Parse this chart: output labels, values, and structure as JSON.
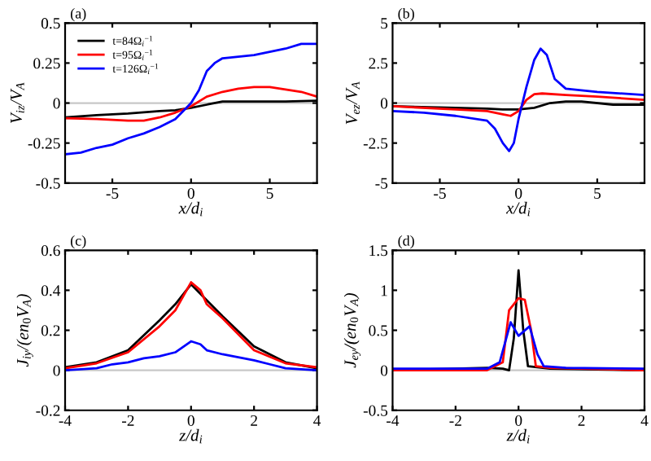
{
  "chart_data": [
    {
      "type": "line",
      "title": "(a)",
      "xlabel": "x/d$_{i}$",
      "ylabel": "V$_{iz}$/V$_{A}$",
      "xlim": [
        -8,
        8
      ],
      "xticks": [
        -5,
        0,
        5
      ],
      "ylim": [
        -0.5,
        0.5
      ],
      "yticks": [
        -0.5,
        -0.25,
        0,
        0.25,
        0.5
      ],
      "legend": "top left",
      "grid": false,
      "ref_lines": [
        {
          "axis": "y",
          "value": 0,
          "color": "#c8c8c8"
        }
      ],
      "series": [
        {
          "name": "t=84Ω$_{i}$$^{−1}$",
          "color": "#000000",
          "x": [
            -8,
            -6,
            -4,
            -2,
            -1,
            0,
            1,
            2,
            4,
            6,
            8
          ],
          "values": [
            -0.09,
            -0.075,
            -0.065,
            -0.05,
            -0.045,
            -0.03,
            -0.01,
            0.01,
            0.01,
            0.01,
            0.015
          ]
        },
        {
          "name": "t=95Ω$_{i}$$^{−1}$",
          "color": "#ff0000",
          "x": [
            -8,
            -6,
            -4,
            -3,
            -2,
            -1,
            0,
            1,
            2,
            3,
            4,
            5,
            6,
            7,
            8
          ],
          "values": [
            -0.095,
            -0.1,
            -0.11,
            -0.11,
            -0.09,
            -0.06,
            -0.02,
            0.04,
            0.07,
            0.09,
            0.1,
            0.1,
            0.085,
            0.07,
            0.04
          ]
        },
        {
          "name": "t=126Ω$_{i}$$^{−1}$",
          "color": "#0000ff",
          "x": [
            -8,
            -7,
            -6,
            -5,
            -4,
            -3,
            -2,
            -1,
            0,
            0.5,
            1,
            1.5,
            2,
            3,
            4,
            5,
            6,
            7,
            8
          ],
          "values": [
            -0.32,
            -0.31,
            -0.28,
            -0.26,
            -0.22,
            -0.19,
            -0.15,
            -0.1,
            0.0,
            0.08,
            0.2,
            0.25,
            0.28,
            0.29,
            0.3,
            0.32,
            0.34,
            0.37,
            0.37
          ]
        }
      ]
    },
    {
      "type": "line",
      "title": "(b)",
      "xlabel": "x/d$_{i}$",
      "ylabel": "V$_{ez}$/V$_{A}$",
      "xlim": [
        -8,
        8
      ],
      "xticks": [
        -5,
        0,
        5
      ],
      "ylim": [
        -5,
        5
      ],
      "yticks": [
        -5,
        -2.5,
        0,
        2.5,
        5
      ],
      "grid": false,
      "ref_lines": [
        {
          "axis": "y",
          "value": 0,
          "color": "#c8c8c8"
        }
      ],
      "series": [
        {
          "color": "#000000",
          "x": [
            -8,
            -4,
            -2,
            -1,
            0,
            1,
            2,
            3,
            4,
            6,
            8
          ],
          "values": [
            -0.2,
            -0.3,
            -0.35,
            -0.4,
            -0.4,
            -0.3,
            0.0,
            0.1,
            0.1,
            -0.1,
            -0.1
          ]
        },
        {
          "color": "#ff0000",
          "x": [
            -8,
            -4,
            -2,
            -1,
            -0.5,
            0,
            0.5,
            1,
            1.5,
            3,
            5,
            8
          ],
          "values": [
            -0.2,
            -0.4,
            -0.5,
            -0.7,
            -0.8,
            -0.5,
            0.2,
            0.55,
            0.6,
            0.5,
            0.4,
            0.2
          ]
        },
        {
          "color": "#0000ff",
          "x": [
            -8,
            -6,
            -4,
            -2,
            -1.5,
            -1,
            -0.6,
            -0.3,
            0,
            0.5,
            1,
            1.4,
            1.8,
            2.3,
            3,
            5,
            8
          ],
          "values": [
            -0.5,
            -0.6,
            -0.8,
            -1.1,
            -1.6,
            -2.5,
            -3.0,
            -2.5,
            -1.0,
            1.0,
            2.7,
            3.4,
            3.0,
            1.5,
            0.9,
            0.7,
            0.5
          ]
        }
      ]
    },
    {
      "type": "line",
      "title": "(c)",
      "xlabel": "z/d$_{i}$",
      "ylabel": "J$_{iy}$/(en$_{0}$V$_{A}$)",
      "xlim": [
        -4,
        4
      ],
      "xticks": [
        -4,
        -2,
        0,
        2,
        4
      ],
      "ylim": [
        -0.2,
        0.6
      ],
      "yticks": [
        -0.2,
        0,
        0.2,
        0.4,
        0.6
      ],
      "grid": false,
      "ref_lines": [
        {
          "axis": "y",
          "value": 0,
          "color": "#c8c8c8"
        }
      ],
      "series": [
        {
          "color": "#000000",
          "x": [
            -4,
            -3,
            -2,
            -1,
            -0.5,
            0,
            0.5,
            1,
            2,
            3,
            4
          ],
          "values": [
            0.015,
            0.04,
            0.1,
            0.25,
            0.33,
            0.43,
            0.35,
            0.27,
            0.12,
            0.04,
            0.01
          ]
        },
        {
          "color": "#ff0000",
          "x": [
            -4,
            -3,
            -2,
            -1,
            -0.5,
            0,
            0.3,
            0.5,
            1,
            2,
            3,
            4
          ],
          "values": [
            0.01,
            0.035,
            0.09,
            0.22,
            0.3,
            0.44,
            0.4,
            0.33,
            0.26,
            0.1,
            0.035,
            0.015
          ]
        },
        {
          "color": "#0000ff",
          "x": [
            -4,
            -3,
            -2.5,
            -2,
            -1.5,
            -1,
            -0.5,
            0,
            0.3,
            0.5,
            1,
            2,
            2.5,
            3,
            4
          ],
          "values": [
            0.0,
            0.01,
            0.03,
            0.04,
            0.06,
            0.07,
            0.09,
            0.145,
            0.13,
            0.1,
            0.08,
            0.05,
            0.03,
            0.01,
            0.0
          ]
        }
      ]
    },
    {
      "type": "line",
      "title": "(d)",
      "xlabel": "z/d$_{i}$",
      "ylabel": "J$_{ey}$/(en$_{0}$V$_{A}$)",
      "xlim": [
        -4,
        4
      ],
      "xticks": [
        -4,
        -2,
        0,
        2,
        4
      ],
      "ylim": [
        -0.5,
        1.5
      ],
      "yticks": [
        -0.5,
        0,
        0.5,
        1,
        1.5
      ],
      "grid": false,
      "ref_lines": [
        {
          "axis": "y",
          "value": 0,
          "color": "#c8c8c8"
        }
      ],
      "series": [
        {
          "color": "#000000",
          "x": [
            -4,
            -1,
            -0.5,
            -0.3,
            -0.15,
            0,
            0.15,
            0.3,
            1,
            4
          ],
          "values": [
            0,
            0.03,
            0.02,
            0.0,
            0.4,
            1.25,
            0.5,
            0.05,
            0.02,
            0
          ]
        },
        {
          "color": "#ff0000",
          "x": [
            -4,
            -1,
            -0.5,
            -0.3,
            -0.1,
            0,
            0.2,
            0.4,
            0.55,
            1,
            4
          ],
          "values": [
            0,
            0,
            0.1,
            0.75,
            0.85,
            0.9,
            0.88,
            0.5,
            0.05,
            0.03,
            0
          ]
        },
        {
          "color": "#0000ff",
          "x": [
            -4,
            -1,
            -0.6,
            -0.25,
            0,
            0.35,
            0.6,
            0.8,
            1.5,
            4
          ],
          "values": [
            0.02,
            0.02,
            0.1,
            0.6,
            0.43,
            0.55,
            0.2,
            0.05,
            0.03,
            0.02
          ]
        }
      ]
    }
  ]
}
